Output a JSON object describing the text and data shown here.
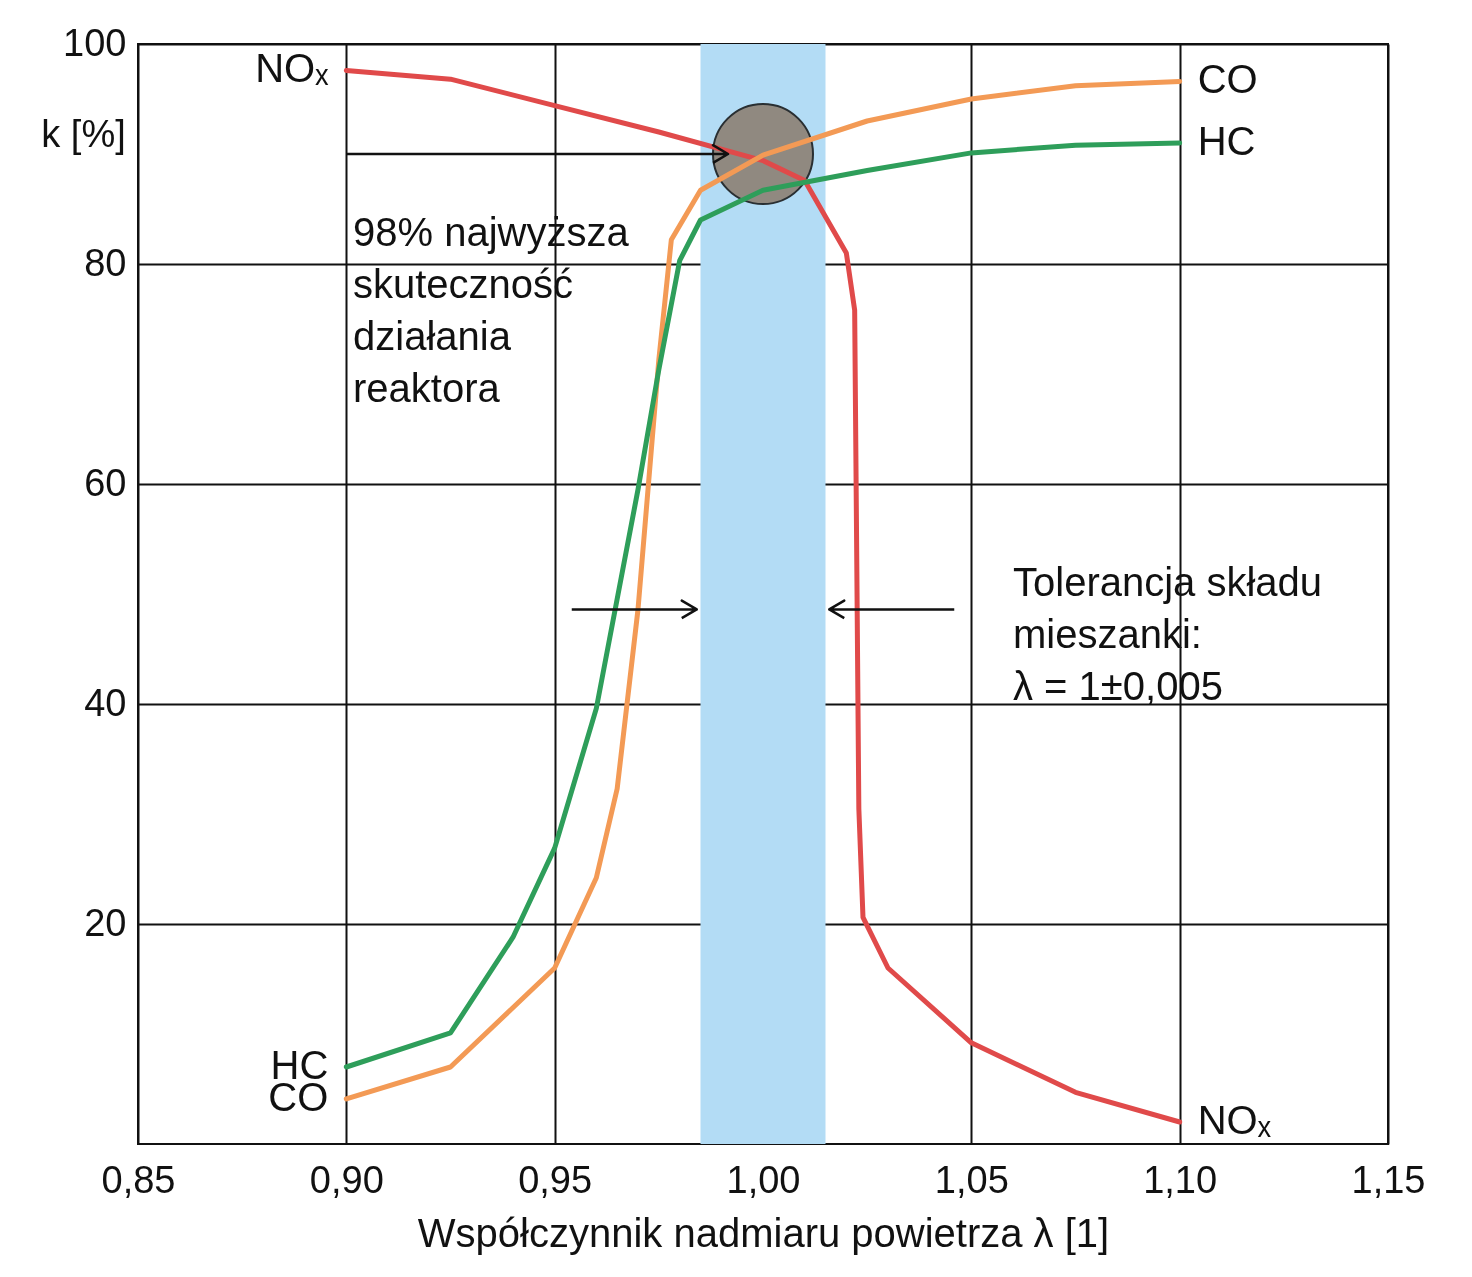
{
  "chart_data": {
    "type": "line",
    "xlabel": "Współczynnik nadmiaru powietrza λ [1]",
    "ylabel": "k [%]",
    "xlim": [
      0.85,
      1.15
    ],
    "ylim": [
      0,
      100
    ],
    "xticks": [
      {
        "value": 0.85,
        "label": "0,85"
      },
      {
        "value": 0.9,
        "label": "0,90"
      },
      {
        "value": 0.95,
        "label": "0,95"
      },
      {
        "value": 1.0,
        "label": "1,00"
      },
      {
        "value": 1.05,
        "label": "1,05"
      },
      {
        "value": 1.1,
        "label": "1,10"
      },
      {
        "value": 1.15,
        "label": "1,15"
      }
    ],
    "yticks": [
      20,
      40,
      60,
      80,
      100
    ],
    "grid": true,
    "legend": false,
    "marker": "none",
    "line_style": "solid",
    "series": [
      {
        "name": "NOₓ",
        "color": "#e04a4a",
        "x": [
          0.9,
          0.925,
          0.95,
          0.975,
          1.0,
          1.01,
          1.02,
          1.022,
          1.023,
          1.024,
          1.03,
          1.05,
          1.075,
          1.1
        ],
        "values": [
          97.6,
          96.8,
          94.4,
          92,
          89.4,
          87.6,
          81,
          75.8,
          30.5,
          20.6,
          16,
          9.2,
          4.7,
          2
        ]
      },
      {
        "name": "CO",
        "color": "#f39a55",
        "x": [
          0.9,
          0.925,
          0.95,
          0.96,
          0.965,
          0.97,
          0.975,
          0.978,
          0.985,
          1.0,
          1.025,
          1.05,
          1.075,
          1.1
        ],
        "values": [
          4.1,
          7,
          16,
          24.2,
          32.3,
          48.6,
          71.3,
          82.2,
          86.7,
          89.9,
          93,
          95,
          96.2,
          96.6
        ]
      },
      {
        "name": "HC",
        "color": "#2e9e5a",
        "x": [
          0.9,
          0.925,
          0.94,
          0.95,
          0.96,
          0.97,
          0.975,
          0.98,
          0.985,
          1.0,
          1.025,
          1.05,
          1.075,
          1.1
        ],
        "values": [
          7,
          10.1,
          18.8,
          26.9,
          39.6,
          59.5,
          70.4,
          80.3,
          84,
          86.7,
          88.5,
          90.1,
          90.8,
          91
        ]
      }
    ],
    "bands": [
      {
        "axis": "x",
        "from": 0.985,
        "to": 1.015,
        "color": "#b3dcf5"
      }
    ],
    "annotations": [
      "98% najwyższa\nskuteczność\ndziałania\nreaktora",
      "Tolerancja składu\nmieszanki:\nλ = 1±0,005"
    ]
  }
}
